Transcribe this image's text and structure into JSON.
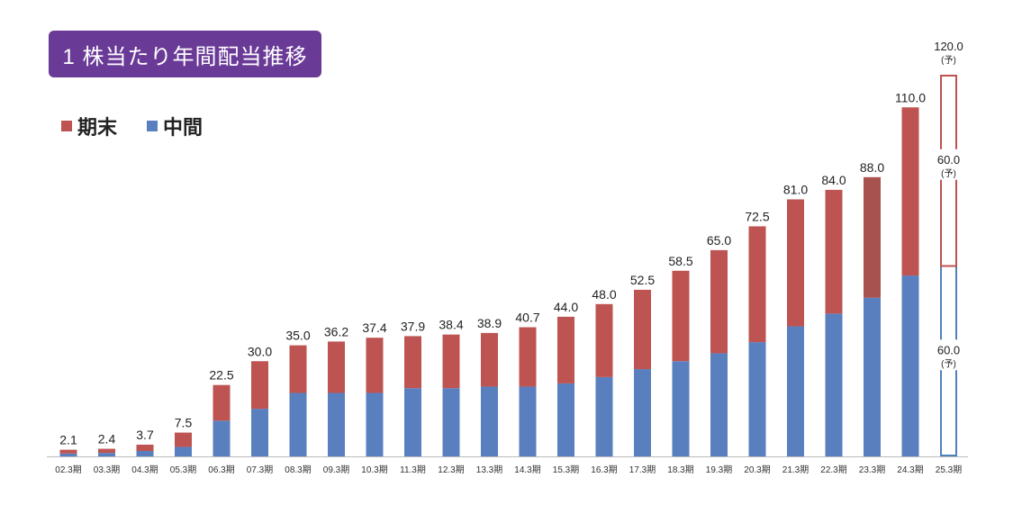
{
  "title": "1 株当たり年間配当推移",
  "colors": {
    "kimatsu": "#bd5452",
    "chukan": "#5a7fbf",
    "forecast_outline": "#c0504d",
    "forecast_outline_blue": "#4f81bd",
    "title_bg": "#6a3a97"
  },
  "legend": [
    {
      "label": "期末",
      "color": "#bd5452"
    },
    {
      "label": "中間",
      "color": "#5a7fbf"
    }
  ],
  "chart_data": {
    "type": "bar",
    "stacked": true,
    "categories": [
      "02.3期",
      "03.3期",
      "04.3期",
      "05.3期",
      "06.3期",
      "07.3期",
      "08.3期",
      "09.3期",
      "10.3期",
      "11.3期",
      "12.3期",
      "13.3期",
      "14.3期",
      "15.3期",
      "16.3期",
      "17.3期",
      "18.3期",
      "19.3期",
      "20.3期",
      "21.3期",
      "22.3期",
      "23.3期",
      "24.3期",
      "25.3期"
    ],
    "totals": [
      "2.1",
      "2.4",
      "3.7",
      "7.5",
      "22.5",
      "30.0",
      "35.0",
      "36.2",
      "37.4",
      "37.9",
      "38.4",
      "38.9",
      "40.7",
      "44.0",
      "48.0",
      "52.5",
      "58.5",
      "65.0",
      "72.5",
      "81.0",
      "84.0",
      "88.0",
      "110.0",
      "120.0"
    ],
    "series": [
      {
        "name": "中間",
        "values": [
          0.9,
          1.1,
          1.7,
          3.0,
          11.25,
          15.0,
          20.0,
          20.0,
          20.0,
          21.5,
          21.5,
          22.0,
          22.0,
          23.0,
          25.0,
          27.5,
          30.0,
          32.5,
          36.0,
          41.0,
          45.0,
          50.0,
          57.0,
          60.0
        ]
      },
      {
        "name": "期末",
        "values": [
          1.2,
          1.3,
          2.0,
          4.5,
          11.25,
          15.0,
          15.0,
          16.2,
          17.4,
          16.4,
          16.9,
          16.9,
          18.7,
          21.0,
          23.0,
          25.0,
          28.5,
          32.5,
          36.5,
          40.0,
          39.0,
          38.0,
          53.0,
          60.0
        ]
      }
    ],
    "forecast": {
      "category": "25.3期",
      "top_label": "120.0",
      "kimatsu_label": "60.0",
      "chukan_label": "60.0",
      "note": "(予)"
    },
    "ylim": [
      0,
      120
    ]
  }
}
